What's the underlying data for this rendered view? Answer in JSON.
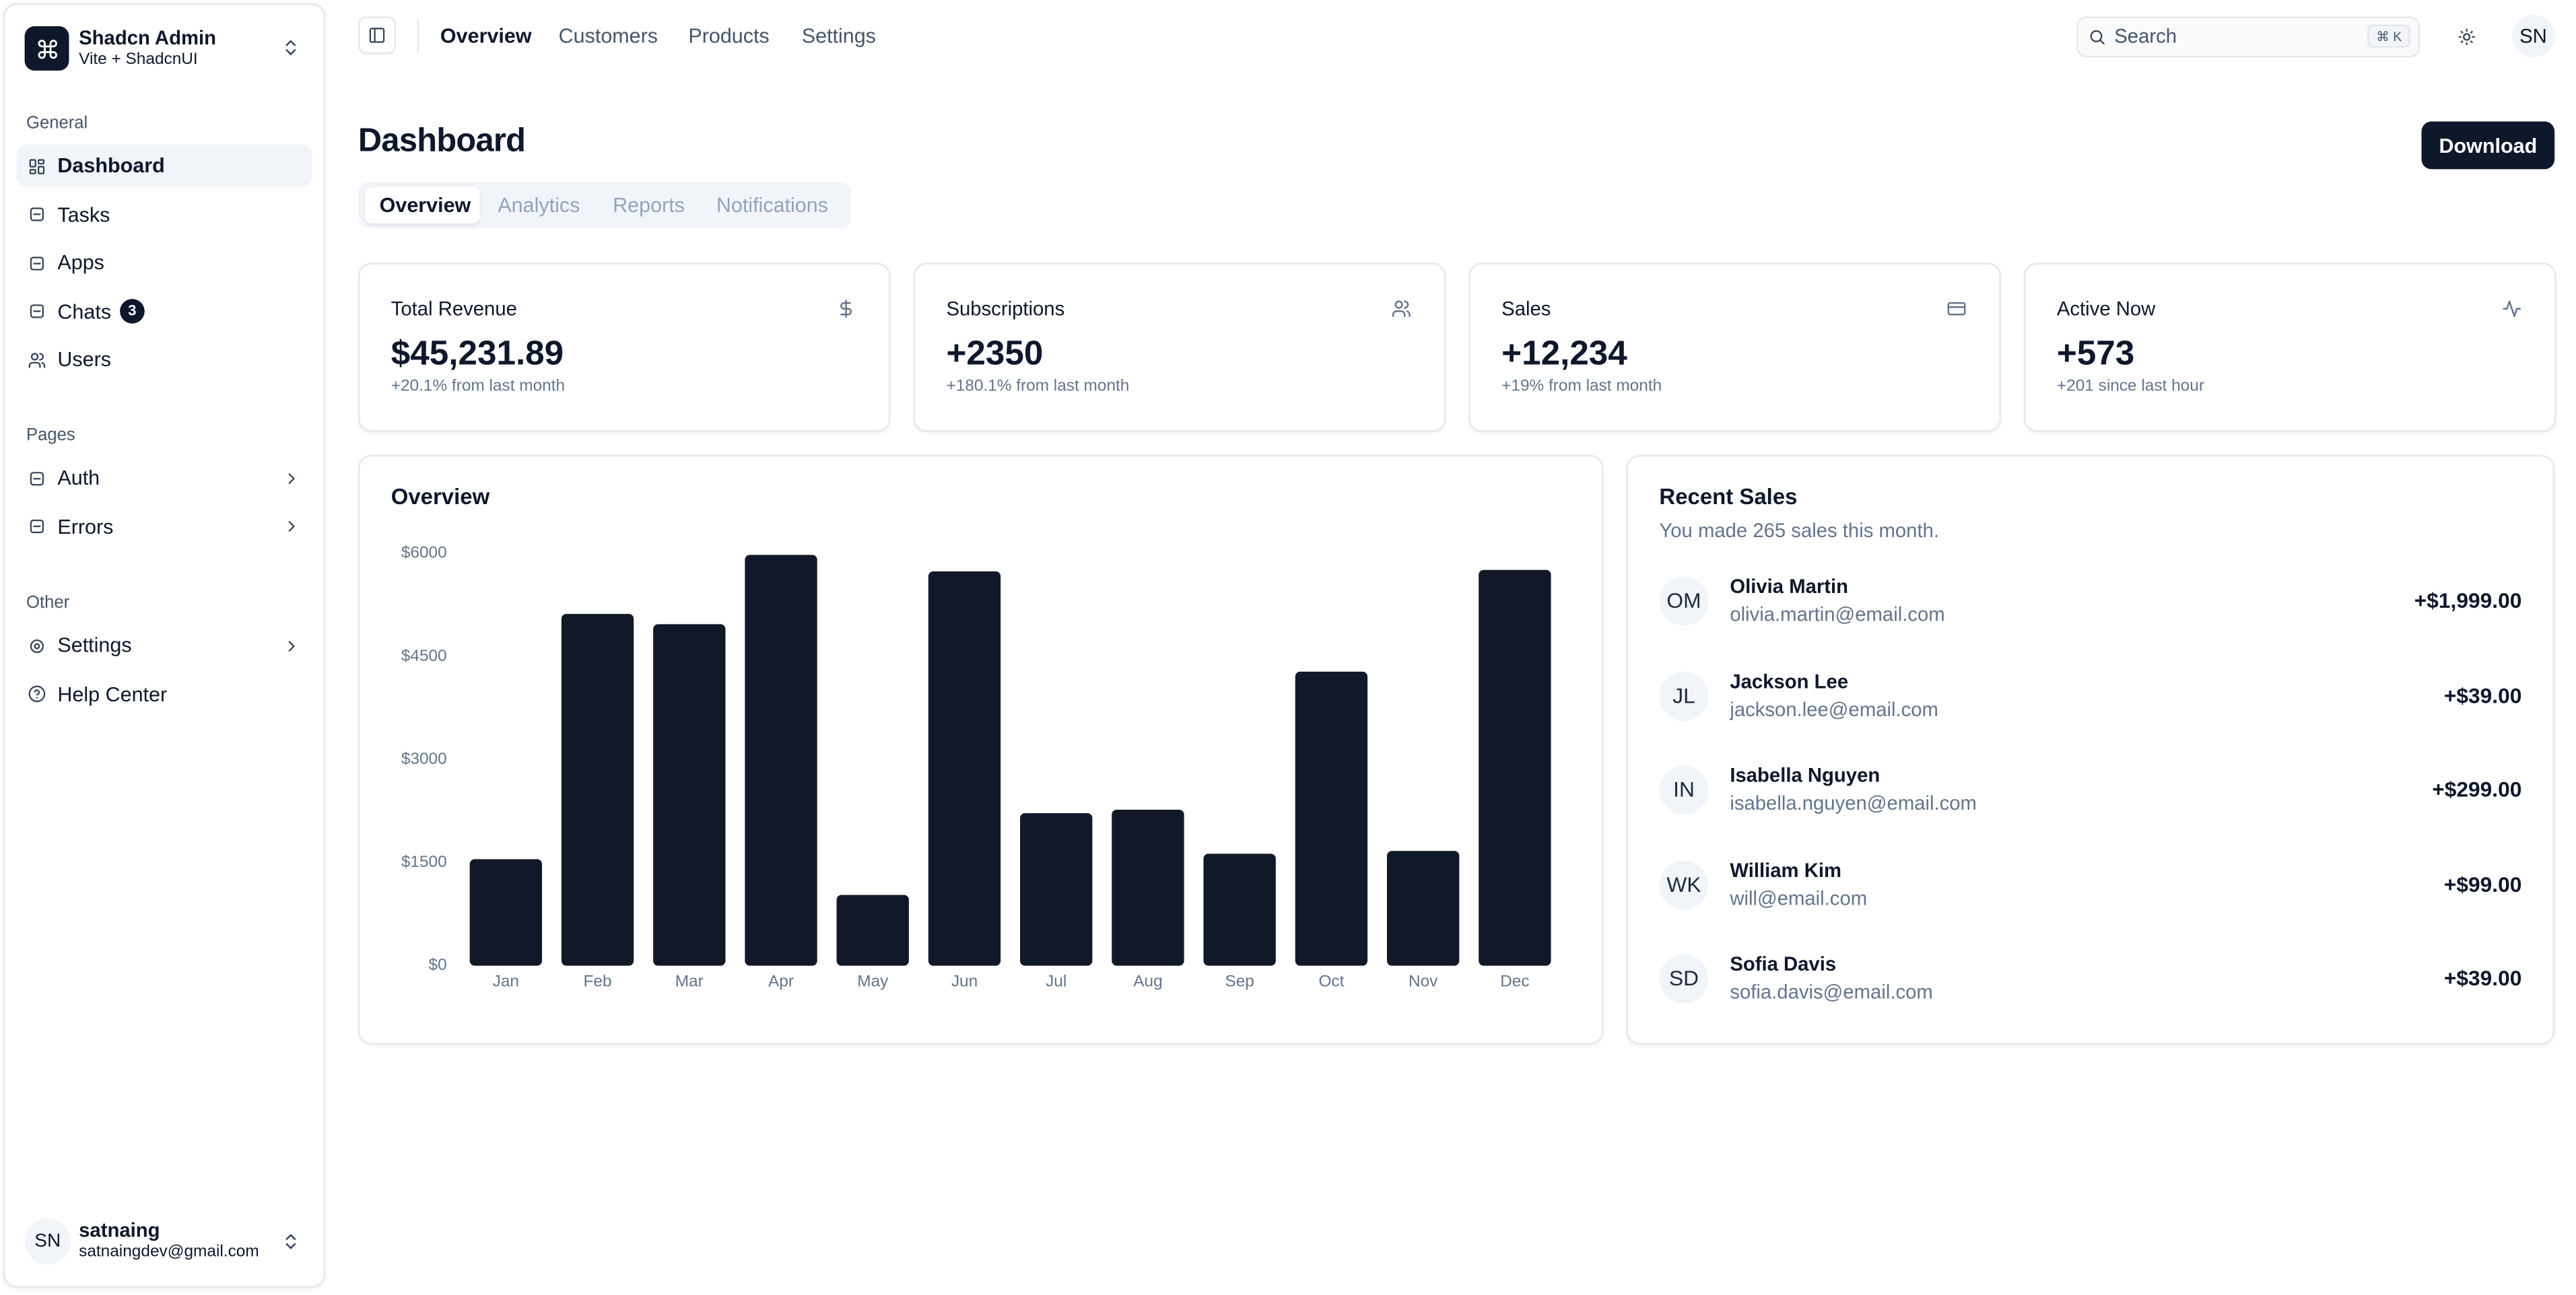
{
  "sidebar": {
    "brand": {
      "title": "Shadcn Admin",
      "subtitle": "Vite + ShadcnUI"
    },
    "groups": [
      {
        "label": "General",
        "items": [
          {
            "label": "Dashboard",
            "active": true
          },
          {
            "label": "Tasks"
          },
          {
            "label": "Apps"
          },
          {
            "label": "Chats",
            "badge": 3
          },
          {
            "label": "Users"
          }
        ]
      },
      {
        "label": "Pages",
        "items": [
          {
            "label": "Auth",
            "submenu": true
          },
          {
            "label": "Errors",
            "submenu": true
          }
        ]
      },
      {
        "label": "Other",
        "items": [
          {
            "label": "Settings",
            "submenu": true
          },
          {
            "label": "Help Center"
          }
        ]
      }
    ],
    "user": {
      "initials": "SN",
      "name": "satnaing",
      "email": "satnaingdev@gmail.com"
    }
  },
  "topbar": {
    "links": [
      "Overview",
      "Customers",
      "Products",
      "Settings"
    ],
    "search": "Search",
    "shortcut": "⌘ K",
    "avatar": "SN"
  },
  "header": {
    "title": "Dashboard",
    "button": "Download"
  },
  "tabs": [
    "Overview",
    "Analytics",
    "Reports",
    "Notifications"
  ],
  "stats": [
    {
      "title": "Total Revenue",
      "value": "$45,231.89",
      "note": "+20.1% from last month"
    },
    {
      "title": "Subscriptions",
      "value": "+2350",
      "note": "+180.1% from last month"
    },
    {
      "title": "Sales",
      "value": "+12,234",
      "note": "+19% from last month"
    },
    {
      "title": "Active Now",
      "value": "+573",
      "note": "+201 since last hour"
    }
  ],
  "chart_data": {
    "type": "bar",
    "title": "Overview",
    "categories": [
      "Jan",
      "Feb",
      "Mar",
      "Apr",
      "May",
      "Jun",
      "Jul",
      "Aug",
      "Sep",
      "Oct",
      "Nov",
      "Dec"
    ],
    "values": [
      1550,
      5120,
      4970,
      5980,
      1030,
      5740,
      2220,
      2270,
      1630,
      4280,
      1670,
      5760
    ],
    "color": "#111827",
    "ylim": [
      0,
      6000
    ],
    "yticks": [
      {
        "value": 0,
        "label": "$0"
      },
      {
        "value": 1500,
        "label": "$1500"
      },
      {
        "value": 3000,
        "label": "$3000"
      },
      {
        "value": 4500,
        "label": "$4500"
      },
      {
        "value": 6000,
        "label": "$6000"
      }
    ],
    "grid": false
  },
  "recent_sales": {
    "title": "Recent Sales",
    "subtitle": "You made 265 sales this month.",
    "rows": [
      {
        "initials": "OM",
        "name": "Olivia Martin",
        "email": "olivia.martin@email.com",
        "amount": "+$1,999.00"
      },
      {
        "initials": "JL",
        "name": "Jackson Lee",
        "email": "jackson.lee@email.com",
        "amount": "+$39.00"
      },
      {
        "initials": "IN",
        "name": "Isabella Nguyen",
        "email": "isabella.nguyen@email.com",
        "amount": "+$299.00"
      },
      {
        "initials": "WK",
        "name": "William Kim",
        "email": "will@email.com",
        "amount": "+$99.00"
      },
      {
        "initials": "SD",
        "name": "Sofia Davis",
        "email": "sofia.davis@email.com",
        "amount": "+$39.00"
      }
    ]
  }
}
